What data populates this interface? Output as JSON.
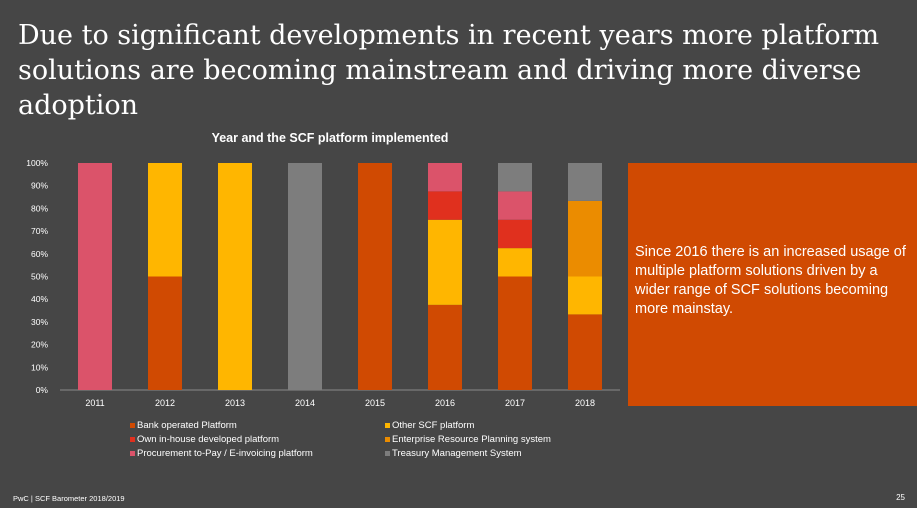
{
  "slide": {
    "title_line1": "Due to significant developments in recent years more platform",
    "title_line2": "solutions are becoming mainstream and driving more diverse adoption",
    "callout_text": "Since 2016 there is an increased usage of multiple platform solutions driven by a wider range of SCF solutions becoming more mainstay.",
    "footer": "PwC | SCF Barometer 2018/2019",
    "page_number": "25",
    "colors": {
      "background": "#464646",
      "callout": "#d04a02"
    }
  },
  "chart_data": {
    "type": "bar",
    "stacked": true,
    "title": "Year and the SCF platform implemented",
    "xlabel": "",
    "ylabel": "",
    "ylim": [
      0,
      100
    ],
    "yticks": [
      0,
      10,
      20,
      30,
      40,
      50,
      60,
      70,
      80,
      90,
      100
    ],
    "ytick_suffix": "%",
    "categories": [
      "2011",
      "2012",
      "2013",
      "2014",
      "2015",
      "2016",
      "2017",
      "2018"
    ],
    "series": [
      {
        "name": "Bank operated Platform",
        "color": "#d04a02",
        "values": [
          0,
          50,
          0,
          0,
          100,
          37.5,
          50,
          33.3
        ]
      },
      {
        "name": "Other SCF platform",
        "color": "#ffb600",
        "values": [
          0,
          50,
          100,
          0,
          0,
          37.5,
          12.5,
          16.7
        ]
      },
      {
        "name": "Enterprise Resource Planning system",
        "color": "#eb8c00",
        "values": [
          0,
          0,
          0,
          0,
          0,
          0,
          0,
          33.3
        ]
      },
      {
        "name": "Own in-house developed platform",
        "color": "#e0301e",
        "values": [
          0,
          0,
          0,
          0,
          0,
          12.5,
          12.5,
          0
        ]
      },
      {
        "name": "Procurement to-Pay / E-invoicing platform",
        "color": "#db536a",
        "values": [
          100,
          0,
          0,
          0,
          0,
          12.5,
          12.5,
          0
        ]
      },
      {
        "name": "Treasury Management System",
        "color": "#7d7d7d",
        "values": [
          0,
          0,
          0,
          100,
          0,
          0,
          12.5,
          16.7
        ]
      }
    ],
    "legend": [
      {
        "label": "Bank operated Platform",
        "color": "#d04a02"
      },
      {
        "label": "Other SCF platform",
        "color": "#ffb600"
      },
      {
        "label": "Own in-house developed platform",
        "color": "#e0301e"
      },
      {
        "label": "Enterprise Resource Planning system",
        "color": "#eb8c00"
      },
      {
        "label": "Procurement to-Pay / E-invoicing platform",
        "color": "#db536a"
      },
      {
        "label": "Treasury Management System",
        "color": "#7d7d7d"
      }
    ],
    "legend_position": "bottom"
  }
}
